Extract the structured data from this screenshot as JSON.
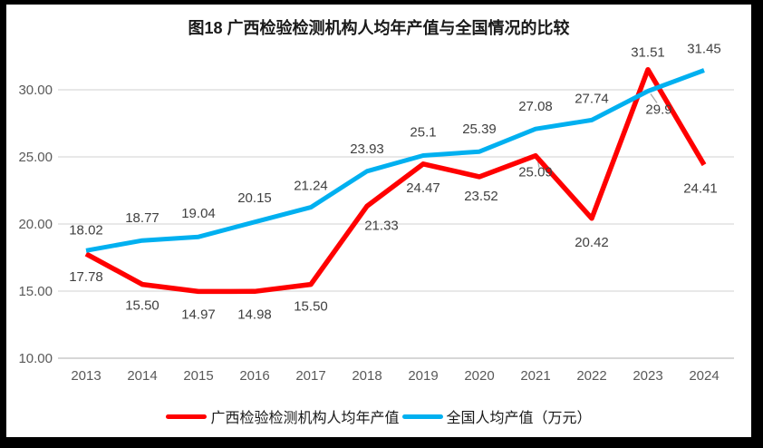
{
  "title": "图18 广西检验检测机构人均年产值与全国情况的比较",
  "chart_data": {
    "type": "line",
    "title": "图18 广西检验检测机构人均年产值与全国情况的比较",
    "categories": [
      "2013",
      "2014",
      "2015",
      "2016",
      "2017",
      "2018",
      "2019",
      "2020",
      "2021",
      "2022",
      "2023",
      "2024"
    ],
    "series": [
      {
        "name": "广西检验检测机构人均年产值",
        "color": "#FF0000",
        "stroke_width": 5.5,
        "values": [
          17.78,
          15.5,
          14.97,
          14.98,
          15.5,
          21.33,
          24.47,
          23.52,
          25.09,
          20.42,
          31.51,
          24.41
        ],
        "labels": [
          "17.78",
          "15.50",
          "14.97",
          "14.98",
          "15.50",
          "21.33",
          "24.47",
          "23.52",
          "25.09",
          "20.42",
          "31.51",
          "24.41"
        ],
        "label_offsets": [
          [
            0,
            30
          ],
          [
            0,
            28
          ],
          [
            0,
            30
          ],
          [
            0,
            30
          ],
          [
            0,
            29
          ],
          [
            16,
            26
          ],
          [
            0,
            31
          ],
          [
            2,
            26
          ],
          [
            0,
            23
          ],
          [
            0,
            31
          ],
          [
            0,
            -14
          ],
          [
            -4,
            31
          ]
        ]
      },
      {
        "name": "全国人均产值（万元）",
        "color": "#00B0F0",
        "stroke_width": 5,
        "values": [
          18.02,
          18.77,
          19.04,
          20.15,
          21.24,
          23.93,
          25.1,
          25.39,
          27.08,
          27.74,
          29.9,
          31.45
        ],
        "labels": [
          "18.02",
          "18.77",
          "19.04",
          "20.15",
          "21.24",
          "23.93",
          "25.1",
          "25.39",
          "27.08",
          "27.74",
          "29.9",
          "31.45"
        ],
        "label_offsets": [
          [
            0,
            -18
          ],
          [
            0,
            -20
          ],
          [
            0,
            -21
          ],
          [
            0,
            -22
          ],
          [
            0,
            -19
          ],
          [
            0,
            -20
          ],
          [
            0,
            -21
          ],
          [
            0,
            -20
          ],
          [
            0,
            -20
          ],
          [
            0,
            -19
          ],
          [
            12,
            25
          ],
          [
            0,
            -19
          ]
        ]
      }
    ],
    "y_ticks": [
      "10.00",
      "15.00",
      "20.00",
      "25.00",
      "30.00"
    ],
    "ylim": [
      10,
      35
    ],
    "grid": true,
    "legend_position": "bottom",
    "leader_lines": [
      {
        "series": 0,
        "index": 8,
        "from": [
          2,
          3
        ],
        "to": [
          4,
          13
        ]
      },
      {
        "series": 1,
        "index": 10,
        "from": [
          3,
          3
        ],
        "to": [
          10,
          13
        ]
      }
    ],
    "colors": {
      "grid": "#D9D9D9",
      "axis_line": "#BFBFBF",
      "tick_text": "#595959",
      "data_label_text": "#404040",
      "leader": "#A6A6A6"
    }
  }
}
